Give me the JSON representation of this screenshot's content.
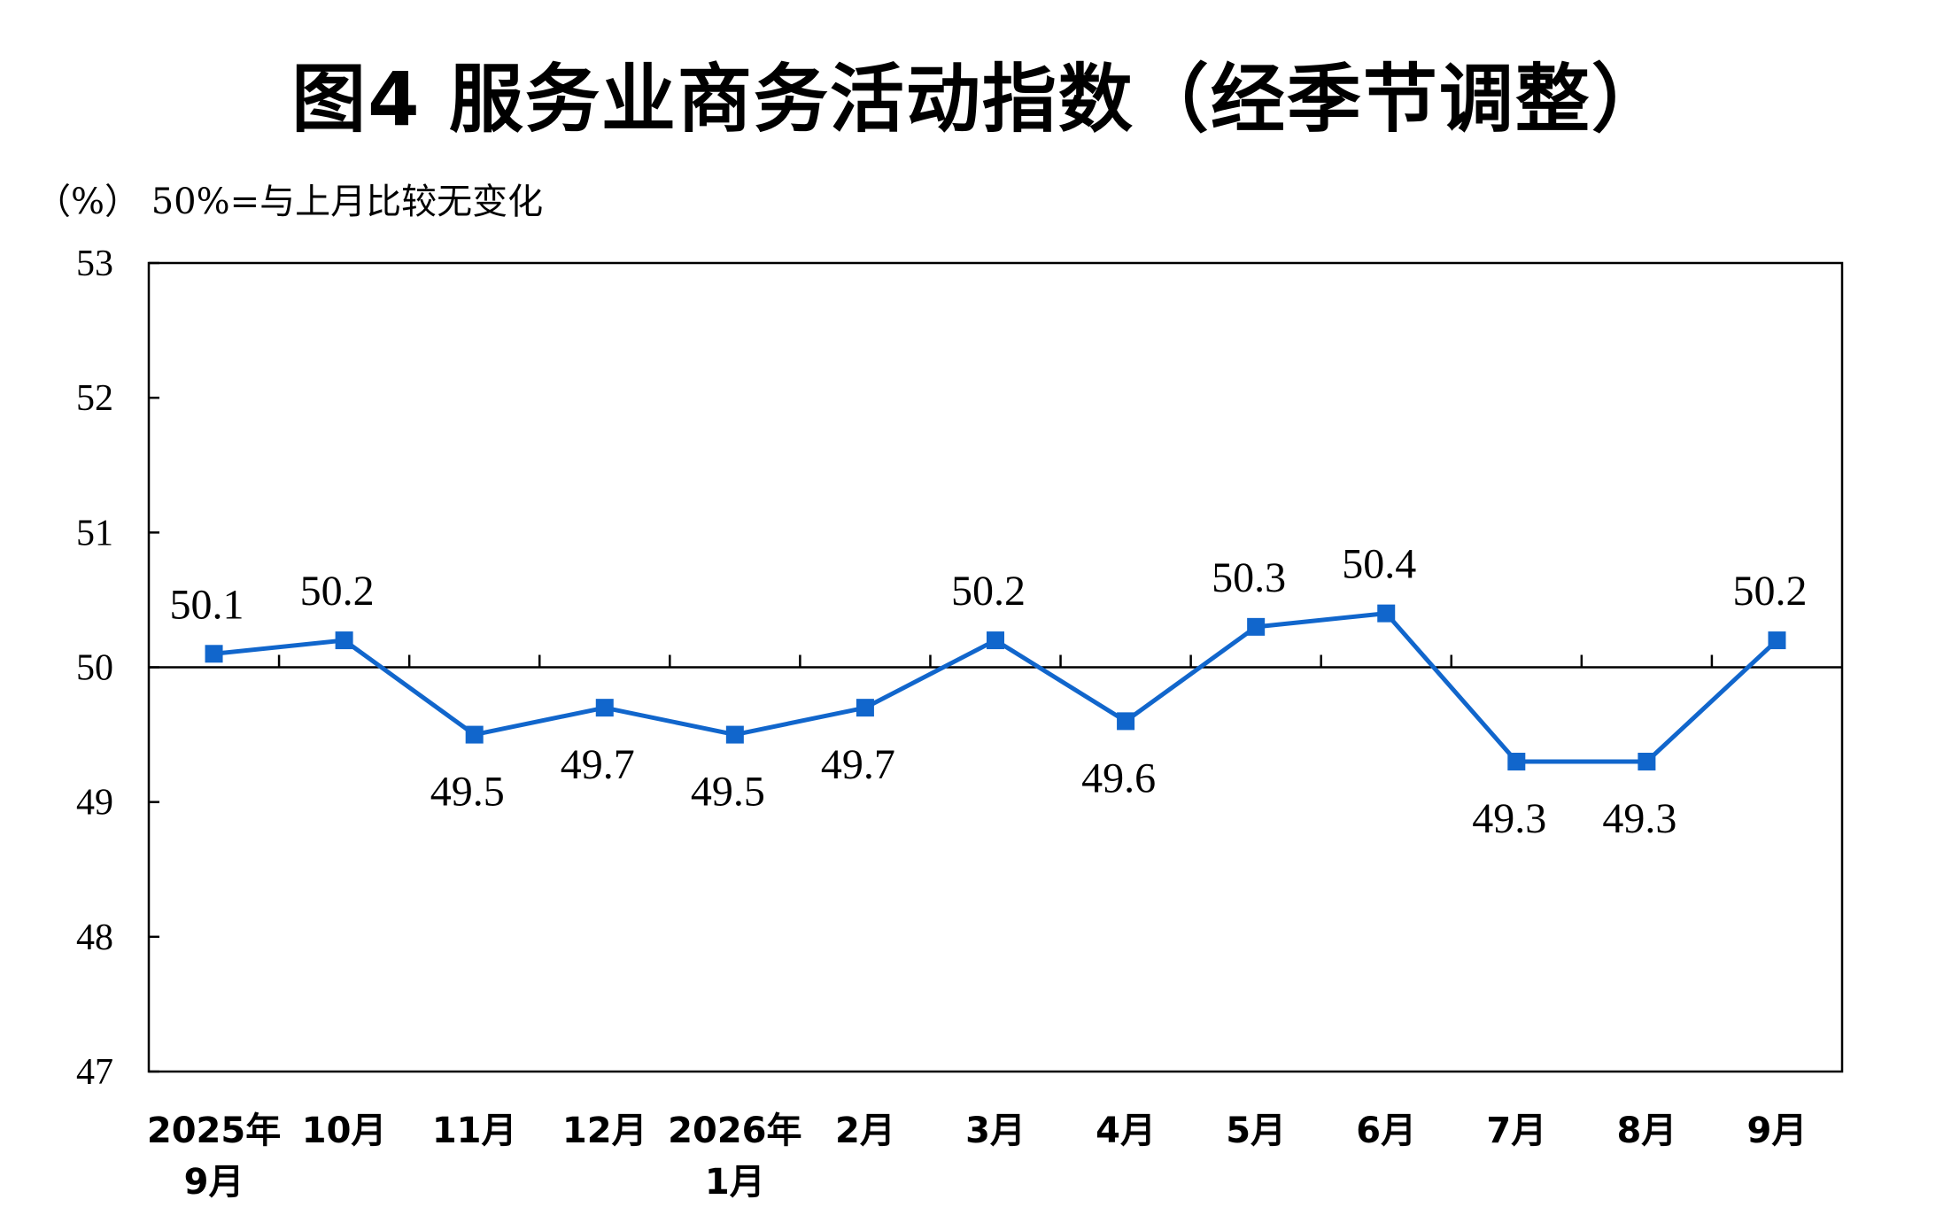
{
  "chart_data": {
    "type": "line",
    "title": "图4  服务业商务活动指数（经季节调整）",
    "ylabel": "（%） 50%=与上月比较无变化",
    "xlabel": "",
    "ylim": [
      47,
      53
    ],
    "yticks": [
      47,
      48,
      49,
      50,
      51,
      52,
      53
    ],
    "reference_line": 50,
    "grid": false,
    "line_color": "#1166CC",
    "categories": [
      [
        "2025年",
        "9月"
      ],
      [
        "10月"
      ],
      [
        "11月"
      ],
      [
        "12月"
      ],
      [
        "2026年",
        "1月"
      ],
      [
        "2月"
      ],
      [
        "3月"
      ],
      [
        "4月"
      ],
      [
        "5月"
      ],
      [
        "6月"
      ],
      [
        "7月"
      ],
      [
        "8月"
      ],
      [
        "9月"
      ]
    ],
    "series": [
      {
        "values": [
          50.1,
          50.2,
          49.5,
          49.7,
          49.5,
          49.7,
          50.2,
          49.6,
          50.3,
          50.4,
          49.3,
          49.3,
          50.2
        ]
      }
    ]
  }
}
